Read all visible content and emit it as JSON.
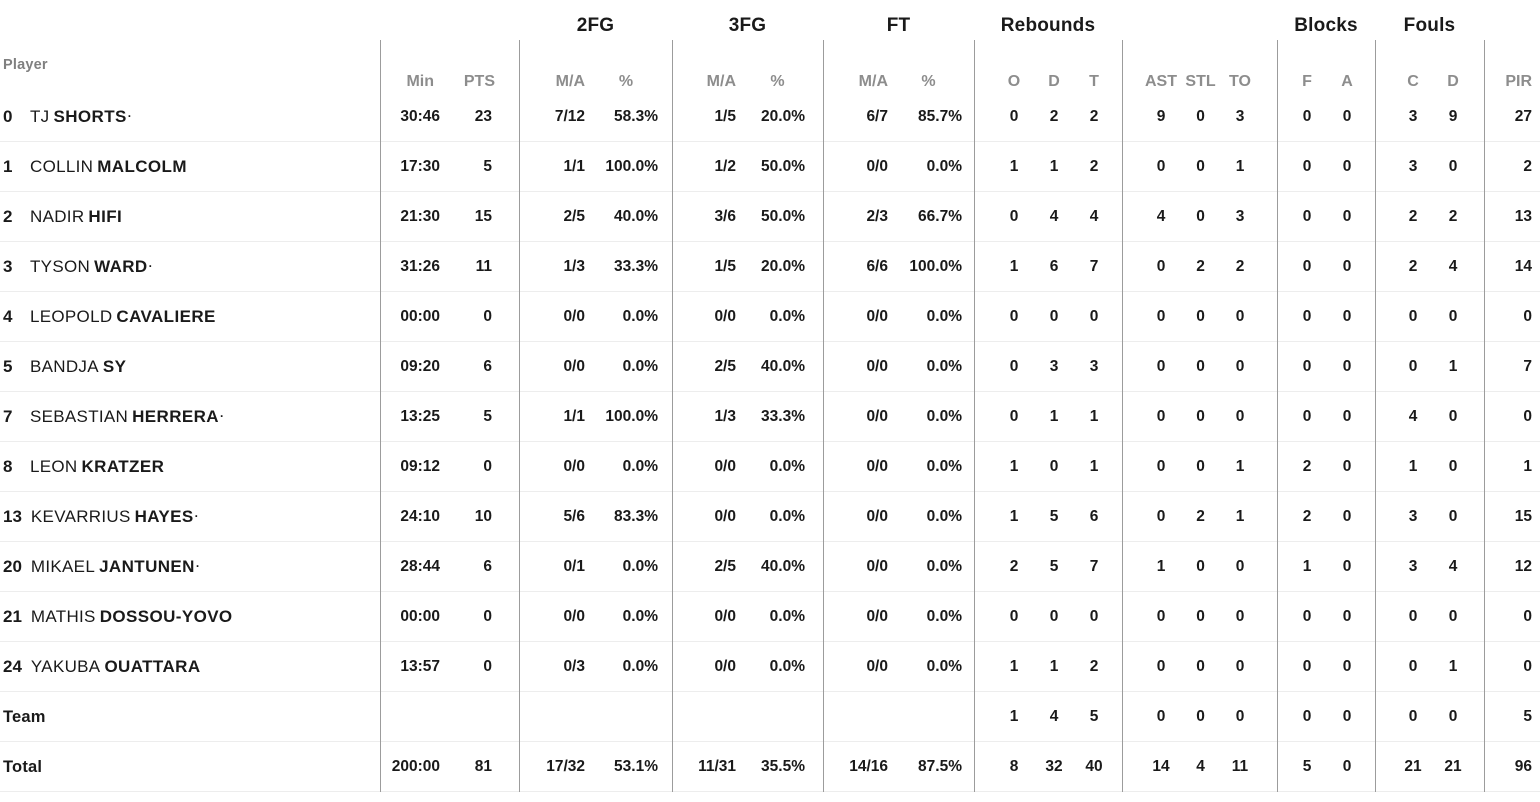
{
  "colors": {
    "text": "#1a1a1a",
    "muted_header": "#8d8d8d",
    "column_divider": "#9c9c9c",
    "row_separator": "#ededed",
    "background": "#ffffff"
  },
  "table": {
    "starter_mark": "·",
    "player_col_header": "Player",
    "groups": [
      {
        "label": "2FG"
      },
      {
        "label": "3FG"
      },
      {
        "label": "FT"
      },
      {
        "label": "Rebounds"
      },
      {
        "label": "Blocks"
      },
      {
        "label": "Fouls"
      }
    ],
    "sub_headers": {
      "min": "Min",
      "pts": "PTS",
      "ma": "M/A",
      "pct": "%",
      "o": "O",
      "d": "D",
      "t": "T",
      "ast": "AST",
      "stl": "STL",
      "to": "TO",
      "f": "F",
      "a": "A",
      "c": "C",
      "dd": "D",
      "pir": "PIR"
    },
    "rows": [
      {
        "num": "0",
        "first": "TJ",
        "last": "SHORTS",
        "starter": true,
        "min": "30:46",
        "pts": "23",
        "fg2_ma": "7/12",
        "fg2_pct": "58.3%",
        "fg3_ma": "1/5",
        "fg3_pct": "20.0%",
        "ft_ma": "6/7",
        "ft_pct": "85.7%",
        "reb_o": "0",
        "reb_d": "2",
        "reb_t": "2",
        "ast": "9",
        "stl": "0",
        "to": "3",
        "blk_f": "0",
        "blk_a": "0",
        "foul_c": "3",
        "foul_d": "9",
        "pir": "27"
      },
      {
        "num": "1",
        "first": "COLLIN",
        "last": "MALCOLM",
        "starter": false,
        "min": "17:30",
        "pts": "5",
        "fg2_ma": "1/1",
        "fg2_pct": "100.0%",
        "fg3_ma": "1/2",
        "fg3_pct": "50.0%",
        "ft_ma": "0/0",
        "ft_pct": "0.0%",
        "reb_o": "1",
        "reb_d": "1",
        "reb_t": "2",
        "ast": "0",
        "stl": "0",
        "to": "1",
        "blk_f": "0",
        "blk_a": "0",
        "foul_c": "3",
        "foul_d": "0",
        "pir": "2"
      },
      {
        "num": "2",
        "first": "NADIR",
        "last": "HIFI",
        "starter": false,
        "min": "21:30",
        "pts": "15",
        "fg2_ma": "2/5",
        "fg2_pct": "40.0%",
        "fg3_ma": "3/6",
        "fg3_pct": "50.0%",
        "ft_ma": "2/3",
        "ft_pct": "66.7%",
        "reb_o": "0",
        "reb_d": "4",
        "reb_t": "4",
        "ast": "4",
        "stl": "0",
        "to": "3",
        "blk_f": "0",
        "blk_a": "0",
        "foul_c": "2",
        "foul_d": "2",
        "pir": "13"
      },
      {
        "num": "3",
        "first": "TYSON",
        "last": "WARD",
        "starter": true,
        "min": "31:26",
        "pts": "11",
        "fg2_ma": "1/3",
        "fg2_pct": "33.3%",
        "fg3_ma": "1/5",
        "fg3_pct": "20.0%",
        "ft_ma": "6/6",
        "ft_pct": "100.0%",
        "reb_o": "1",
        "reb_d": "6",
        "reb_t": "7",
        "ast": "0",
        "stl": "2",
        "to": "2",
        "blk_f": "0",
        "blk_a": "0",
        "foul_c": "2",
        "foul_d": "4",
        "pir": "14"
      },
      {
        "num": "4",
        "first": "LEOPOLD",
        "last": "CAVALIERE",
        "starter": false,
        "min": "00:00",
        "pts": "0",
        "fg2_ma": "0/0",
        "fg2_pct": "0.0%",
        "fg3_ma": "0/0",
        "fg3_pct": "0.0%",
        "ft_ma": "0/0",
        "ft_pct": "0.0%",
        "reb_o": "0",
        "reb_d": "0",
        "reb_t": "0",
        "ast": "0",
        "stl": "0",
        "to": "0",
        "blk_f": "0",
        "blk_a": "0",
        "foul_c": "0",
        "foul_d": "0",
        "pir": "0"
      },
      {
        "num": "5",
        "first": "BANDJA",
        "last": "SY",
        "starter": false,
        "min": "09:20",
        "pts": "6",
        "fg2_ma": "0/0",
        "fg2_pct": "0.0%",
        "fg3_ma": "2/5",
        "fg3_pct": "40.0%",
        "ft_ma": "0/0",
        "ft_pct": "0.0%",
        "reb_o": "0",
        "reb_d": "3",
        "reb_t": "3",
        "ast": "0",
        "stl": "0",
        "to": "0",
        "blk_f": "0",
        "blk_a": "0",
        "foul_c": "0",
        "foul_d": "1",
        "pir": "7"
      },
      {
        "num": "7",
        "first": "SEBASTIAN",
        "last": "HERRERA",
        "starter": true,
        "min": "13:25",
        "pts": "5",
        "fg2_ma": "1/1",
        "fg2_pct": "100.0%",
        "fg3_ma": "1/3",
        "fg3_pct": "33.3%",
        "ft_ma": "0/0",
        "ft_pct": "0.0%",
        "reb_o": "0",
        "reb_d": "1",
        "reb_t": "1",
        "ast": "0",
        "stl": "0",
        "to": "0",
        "blk_f": "0",
        "blk_a": "0",
        "foul_c": "4",
        "foul_d": "0",
        "pir": "0"
      },
      {
        "num": "8",
        "first": "LEON",
        "last": "KRATZER",
        "starter": false,
        "min": "09:12",
        "pts": "0",
        "fg2_ma": "0/0",
        "fg2_pct": "0.0%",
        "fg3_ma": "0/0",
        "fg3_pct": "0.0%",
        "ft_ma": "0/0",
        "ft_pct": "0.0%",
        "reb_o": "1",
        "reb_d": "0",
        "reb_t": "1",
        "ast": "0",
        "stl": "0",
        "to": "1",
        "blk_f": "2",
        "blk_a": "0",
        "foul_c": "1",
        "foul_d": "0",
        "pir": "1"
      },
      {
        "num": "13",
        "first": "KEVARRIUS",
        "last": "HAYES",
        "starter": true,
        "min": "24:10",
        "pts": "10",
        "fg2_ma": "5/6",
        "fg2_pct": "83.3%",
        "fg3_ma": "0/0",
        "fg3_pct": "0.0%",
        "ft_ma": "0/0",
        "ft_pct": "0.0%",
        "reb_o": "1",
        "reb_d": "5",
        "reb_t": "6",
        "ast": "0",
        "stl": "2",
        "to": "1",
        "blk_f": "2",
        "blk_a": "0",
        "foul_c": "3",
        "foul_d": "0",
        "pir": "15"
      },
      {
        "num": "20",
        "first": "MIKAEL",
        "last": "JANTUNEN",
        "starter": true,
        "min": "28:44",
        "pts": "6",
        "fg2_ma": "0/1",
        "fg2_pct": "0.0%",
        "fg3_ma": "2/5",
        "fg3_pct": "40.0%",
        "ft_ma": "0/0",
        "ft_pct": "0.0%",
        "reb_o": "2",
        "reb_d": "5",
        "reb_t": "7",
        "ast": "1",
        "stl": "0",
        "to": "0",
        "blk_f": "1",
        "blk_a": "0",
        "foul_c": "3",
        "foul_d": "4",
        "pir": "12"
      },
      {
        "num": "21",
        "first": "MATHIS",
        "last": "DOSSOU-YOVO",
        "starter": false,
        "min": "00:00",
        "pts": "0",
        "fg2_ma": "0/0",
        "fg2_pct": "0.0%",
        "fg3_ma": "0/0",
        "fg3_pct": "0.0%",
        "ft_ma": "0/0",
        "ft_pct": "0.0%",
        "reb_o": "0",
        "reb_d": "0",
        "reb_t": "0",
        "ast": "0",
        "stl": "0",
        "to": "0",
        "blk_f": "0",
        "blk_a": "0",
        "foul_c": "0",
        "foul_d": "0",
        "pir": "0"
      },
      {
        "num": "24",
        "first": "YAKUBA",
        "last": "OUATTARA",
        "starter": false,
        "min": "13:57",
        "pts": "0",
        "fg2_ma": "0/3",
        "fg2_pct": "0.0%",
        "fg3_ma": "0/0",
        "fg3_pct": "0.0%",
        "ft_ma": "0/0",
        "ft_pct": "0.0%",
        "reb_o": "1",
        "reb_d": "1",
        "reb_t": "2",
        "ast": "0",
        "stl": "0",
        "to": "0",
        "blk_f": "0",
        "blk_a": "0",
        "foul_c": "0",
        "foul_d": "1",
        "pir": "0"
      }
    ],
    "team_row": {
      "label": "Team",
      "reb_o": "1",
      "reb_d": "4",
      "reb_t": "5",
      "ast": "0",
      "stl": "0",
      "to": "0",
      "blk_f": "0",
      "blk_a": "0",
      "foul_c": "0",
      "foul_d": "0",
      "pir": "5"
    },
    "total_row": {
      "label": "Total",
      "min": "200:00",
      "pts": "81",
      "fg2_ma": "17/32",
      "fg2_pct": "53.1%",
      "fg3_ma": "11/31",
      "fg3_pct": "35.5%",
      "ft_ma": "14/16",
      "ft_pct": "87.5%",
      "reb_o": "8",
      "reb_d": "32",
      "reb_t": "40",
      "ast": "14",
      "stl": "4",
      "to": "11",
      "blk_f": "5",
      "blk_a": "0",
      "foul_c": "21",
      "foul_d": "21",
      "pir": "96"
    }
  }
}
